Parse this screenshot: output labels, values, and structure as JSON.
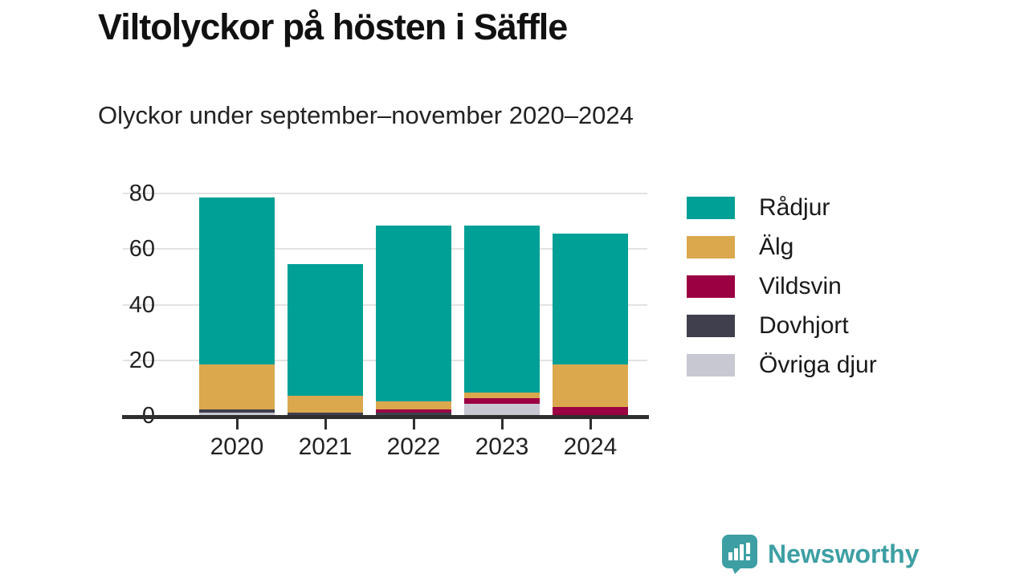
{
  "header": {
    "title": "Viltolyckor på hösten i Säffle",
    "subtitle": "Olyckor under september–november 2020–2024"
  },
  "chart_data": {
    "type": "bar",
    "stacked": true,
    "title": "Viltolyckor på hösten i Säffle",
    "subtitle": "Olyckor under september–november 2020–2024",
    "categories": [
      "2020",
      "2021",
      "2022",
      "2023",
      "2024"
    ],
    "series": [
      {
        "name": "Rådjur",
        "color": "#00a096",
        "values": [
          60,
          47,
          63,
          60,
          47
        ]
      },
      {
        "name": "Älg",
        "color": "#dba84e",
        "values": [
          16,
          6,
          3,
          2,
          15
        ]
      },
      {
        "name": "Vildsvin",
        "color": "#9b0042",
        "values": [
          0,
          0,
          1,
          2,
          3
        ]
      },
      {
        "name": "Dovhjort",
        "color": "#3f3f4d",
        "values": [
          1,
          1,
          1,
          0,
          0
        ]
      },
      {
        "name": "Övriga djur",
        "color": "#c8c8d3",
        "values": [
          1,
          0,
          0,
          4,
          0
        ]
      }
    ],
    "totals": [
      78,
      54,
      68,
      68,
      65
    ],
    "stack_order_bottom_to_top": [
      "Övriga djur",
      "Dovhjort",
      "Vildsvin",
      "Älg",
      "Rådjur"
    ],
    "xlabel": "",
    "ylabel": "",
    "ylim": [
      0,
      80
    ],
    "yticks": [
      0,
      20,
      40,
      60,
      80
    ],
    "grid": true,
    "legend_position": "right"
  },
  "footer": {
    "brand": "Newsworthy",
    "brand_color": "#3d9fa3"
  }
}
